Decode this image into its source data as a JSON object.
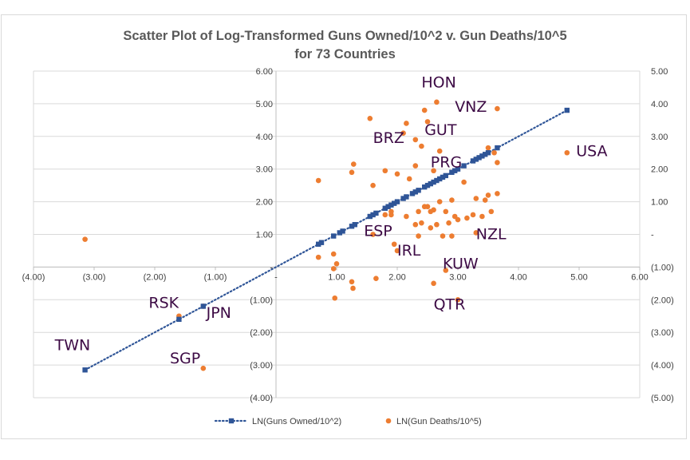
{
  "chart_data": {
    "type": "scatter",
    "title_line1": "Scatter Plot of Log-Transformed Guns Owned/10^2 v. Gun Deaths/10^5",
    "title_line2": "for 73 Countries",
    "xlim": [
      -4,
      6
    ],
    "ylim": [
      -4,
      6
    ],
    "y2lim": [
      -5,
      5
    ],
    "x_ticks": [
      "(4.00)",
      "(3.00)",
      "(2.00)",
      "(1.00)",
      "-",
      "1.00",
      "2.00",
      "3.00",
      "4.00",
      "5.00",
      "6.00"
    ],
    "y_ticks": [
      "(4.00)",
      "(3.00)",
      "(2.00)",
      "(1.00)",
      "-",
      "1.00",
      "2.00",
      "3.00",
      "4.00",
      "5.00",
      "6.00"
    ],
    "y2_ticks": [
      "(5.00)",
      "(4.00)",
      "(3.00)",
      "(2.00)",
      "(1.00)",
      "-",
      "1.00",
      "2.00",
      "3.00",
      "4.00",
      "5.00"
    ],
    "grid": "horizontal",
    "legend_position": "bottom",
    "colors": {
      "guns": "#2f5597",
      "deaths": "#ed7d31",
      "grid": "#d9d9d9",
      "label": "#3d0b45"
    },
    "series": [
      {
        "name": "LN(Guns Owned/10^2)",
        "axis": "left",
        "marker": "square",
        "line": "dotted",
        "points": [
          [
            -3.15,
            -3.15
          ],
          [
            -1.6,
            -1.6
          ],
          [
            -1.2,
            -1.2
          ],
          [
            0.7,
            0.7
          ],
          [
            0.75,
            0.75
          ],
          [
            0.95,
            0.95
          ],
          [
            1.05,
            1.05
          ],
          [
            1.1,
            1.1
          ],
          [
            1.25,
            1.25
          ],
          [
            1.3,
            1.3
          ],
          [
            1.55,
            1.55
          ],
          [
            1.6,
            1.6
          ],
          [
            1.65,
            1.65
          ],
          [
            1.8,
            1.8
          ],
          [
            1.85,
            1.85
          ],
          [
            1.9,
            1.9
          ],
          [
            1.95,
            1.95
          ],
          [
            2.0,
            2.0
          ],
          [
            2.1,
            2.1
          ],
          [
            2.15,
            2.15
          ],
          [
            2.25,
            2.25
          ],
          [
            2.3,
            2.3
          ],
          [
            2.35,
            2.35
          ],
          [
            2.45,
            2.45
          ],
          [
            2.5,
            2.5
          ],
          [
            2.55,
            2.55
          ],
          [
            2.6,
            2.6
          ],
          [
            2.65,
            2.65
          ],
          [
            2.7,
            2.7
          ],
          [
            2.75,
            2.75
          ],
          [
            2.8,
            2.8
          ],
          [
            2.9,
            2.9
          ],
          [
            2.95,
            2.95
          ],
          [
            3.0,
            3.0
          ],
          [
            3.1,
            3.1
          ],
          [
            3.25,
            3.25
          ],
          [
            3.3,
            3.3
          ],
          [
            3.35,
            3.35
          ],
          [
            3.4,
            3.4
          ],
          [
            3.45,
            3.45
          ],
          [
            3.5,
            3.5
          ],
          [
            3.65,
            3.65
          ],
          [
            4.8,
            4.8
          ]
        ]
      },
      {
        "name": "LN(Gun Deaths/10^5)",
        "axis": "right",
        "marker": "circle",
        "points": [
          [
            -3.15,
            -0.15
          ],
          [
            -1.6,
            -2.5
          ],
          [
            -1.2,
            -2.2
          ],
          [
            -1.2,
            -4.1
          ],
          [
            0.7,
            1.65
          ],
          [
            0.7,
            -0.7
          ],
          [
            0.95,
            -0.6
          ],
          [
            1.0,
            -0.9
          ],
          [
            0.95,
            -1.05
          ],
          [
            0.97,
            -1.95
          ],
          [
            1.25,
            1.9
          ],
          [
            1.28,
            2.15
          ],
          [
            1.25,
            -1.45
          ],
          [
            1.27,
            -1.65
          ],
          [
            1.55,
            3.55
          ],
          [
            1.6,
            0.0
          ],
          [
            1.6,
            1.5
          ],
          [
            1.65,
            -1.35
          ],
          [
            1.8,
            1.95
          ],
          [
            1.9,
            0.6
          ],
          [
            1.9,
            0.7
          ],
          [
            1.95,
            -0.3
          ],
          [
            2.0,
            1.85
          ],
          [
            2.0,
            -0.5
          ],
          [
            2.1,
            3.1
          ],
          [
            2.15,
            3.4
          ],
          [
            2.15,
            0.55
          ],
          [
            2.3,
            2.1
          ],
          [
            2.3,
            2.9
          ],
          [
            2.3,
            0.3
          ],
          [
            2.35,
            0.7
          ],
          [
            2.35,
            -0.05
          ],
          [
            2.4,
            2.7
          ],
          [
            2.4,
            0.35
          ],
          [
            2.45,
            3.8
          ],
          [
            2.5,
            3.45
          ],
          [
            2.5,
            0.85
          ],
          [
            2.55,
            0.7
          ],
          [
            2.55,
            0.2
          ],
          [
            2.6,
            1.95
          ],
          [
            2.6,
            0.75
          ],
          [
            2.6,
            -1.5
          ],
          [
            2.65,
            4.05
          ],
          [
            2.65,
            0.3
          ],
          [
            2.7,
            2.55
          ],
          [
            2.7,
            1.0
          ],
          [
            2.75,
            -0.05
          ],
          [
            2.8,
            0.7
          ],
          [
            2.8,
            -1.1
          ],
          [
            2.85,
            0.35
          ],
          [
            2.9,
            1.05
          ],
          [
            2.9,
            -0.05
          ],
          [
            2.95,
            0.55
          ],
          [
            3.0,
            -2.0
          ],
          [
            3.0,
            0.45
          ],
          [
            3.15,
            0.5
          ],
          [
            3.25,
            0.6
          ],
          [
            3.3,
            1.1
          ],
          [
            3.3,
            0.05
          ],
          [
            3.4,
            0.55
          ],
          [
            3.45,
            1.05
          ],
          [
            3.5,
            2.65
          ],
          [
            3.5,
            1.2
          ],
          [
            3.55,
            0.7
          ],
          [
            3.6,
            2.5
          ],
          [
            3.65,
            3.85
          ],
          [
            3.65,
            2.2
          ],
          [
            3.65,
            1.25
          ],
          [
            4.8,
            2.5
          ],
          [
            3.1,
            1.6
          ],
          [
            2.2,
            1.7
          ],
          [
            1.8,
            0.6
          ],
          [
            2.45,
            0.85
          ]
        ]
      }
    ],
    "labels": [
      {
        "text": "HON",
        "x": 2.4,
        "y": 5.5
      },
      {
        "text": "VNZ",
        "x": 2.95,
        "y": 4.75
      },
      {
        "text": "BRZ",
        "x": 1.6,
        "y": 3.8
      },
      {
        "text": "GUT",
        "x": 2.45,
        "y": 4.05
      },
      {
        "text": "PRG",
        "x": 2.55,
        "y": 3.05
      },
      {
        "text": "USA",
        "x": 4.95,
        "y": 3.4
      },
      {
        "text": "ESP",
        "x": 1.45,
        "y": 0.95
      },
      {
        "text": "IRL",
        "x": 2.0,
        "y": 0.35
      },
      {
        "text": "NZL",
        "x": 3.3,
        "y": 0.85
      },
      {
        "text": "KUW",
        "x": 2.75,
        "y": -0.05
      },
      {
        "text": "QTR",
        "x": 2.6,
        "y": -1.3
      },
      {
        "text": "RSK",
        "x": -2.1,
        "y": -1.25
      },
      {
        "text": "JPN",
        "x": -1.15,
        "y": -1.55
      },
      {
        "text": "TWN",
        "x": -3.65,
        "y": -2.55
      },
      {
        "text": "SGP",
        "x": -1.75,
        "y": -2.95
      }
    ]
  }
}
